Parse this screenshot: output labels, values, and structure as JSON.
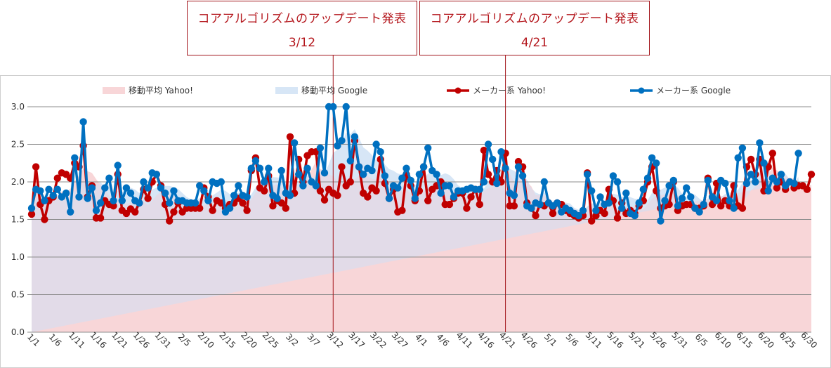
{
  "chart_data": {
    "type": "line",
    "title": "",
    "xlabel": "",
    "ylabel": "",
    "ylim": [
      0,
      3.0
    ],
    "y_ticks": [
      "0.0",
      "0.5",
      "1.0",
      "1.5",
      "2.0",
      "2.5",
      "3.0"
    ],
    "x_tick_labels": [
      "1/1",
      "1/6",
      "1/11",
      "1/16",
      "1/21",
      "1/26",
      "1/31",
      "2/5",
      "2/10",
      "2/15",
      "2/20",
      "2/25",
      "3/2",
      "3/7",
      "3/12",
      "3/17",
      "3/22",
      "3/27",
      "4/1",
      "4/6",
      "4/11",
      "4/16",
      "4/21",
      "4/26",
      "5/1",
      "5/6",
      "5/11",
      "5/16",
      "5/21",
      "5/26",
      "5/31",
      "6/5",
      "6/10",
      "6/15",
      "6/20",
      "6/25",
      "6/30"
    ],
    "legend": [
      "移動平均 Yahoo!",
      "移動平均 Google",
      "メーカー系 Yahoo!",
      "メーカー系 Google"
    ],
    "colors": {
      "yahoo": "#c00000",
      "google": "#0070c0",
      "yahoo_area": "#f8d6d8",
      "google_area": "#d7e6f6",
      "overlap_area": "#e2dbe8",
      "annotation": "#a3161c"
    },
    "annotations": [
      {
        "title": "コアアルゴリズムのアップデート発表",
        "date": "3/12",
        "day_index": 70
      },
      {
        "title": "コアアルゴリズムのアップデート発表",
        "date": "4/21",
        "day_index": 110
      }
    ],
    "series": [
      {
        "name": "メーカー系 Yahoo!",
        "values": [
          1.57,
          2.2,
          1.7,
          1.5,
          1.75,
          1.8,
          2.05,
          2.12,
          2.1,
          2.05,
          2.25,
          2.2,
          2.48,
          1.8,
          1.95,
          1.52,
          1.52,
          1.75,
          1.7,
          1.68,
          2.1,
          1.62,
          1.58,
          1.64,
          1.6,
          1.72,
          1.9,
          1.78,
          2.0,
          2.1,
          1.95,
          1.7,
          1.48,
          1.6,
          1.72,
          1.6,
          1.65,
          1.65,
          1.65,
          1.65,
          1.92,
          1.8,
          1.62,
          1.75,
          1.72,
          1.65,
          1.7,
          1.72,
          1.78,
          1.72,
          1.62,
          2.15,
          2.32,
          1.92,
          1.88,
          2.08,
          1.68,
          1.75,
          1.72,
          1.65,
          2.6,
          1.85,
          2.3,
          2.0,
          2.35,
          2.4,
          2.4,
          1.88,
          1.76,
          1.9,
          1.85,
          1.82,
          2.2,
          1.95,
          2.0,
          2.55,
          2.2,
          1.85,
          1.8,
          1.92,
          1.88,
          2.3,
          1.98,
          1.78,
          1.9,
          1.6,
          1.62,
          2.1,
          1.95,
          1.75,
          1.88,
          2.2,
          1.75,
          1.9,
          1.95,
          2.0,
          1.7,
          1.7,
          1.78,
          1.85,
          1.85,
          1.65,
          1.8,
          1.9,
          1.7,
          2.42,
          2.1,
          2.0,
          2.15,
          2.0,
          2.38,
          1.68,
          1.68,
          2.27,
          2.2,
          1.72,
          1.65,
          1.55,
          1.7,
          1.68,
          1.72,
          1.58,
          1.72,
          1.7,
          1.62,
          1.58,
          1.55,
          1.52,
          1.55,
          2.12,
          1.48,
          1.55,
          1.62,
          1.58,
          1.9,
          1.75,
          1.52,
          1.72,
          1.58,
          1.62,
          1.58,
          1.68,
          1.75,
          2.0,
          2.2,
          1.88,
          1.65,
          1.68,
          1.7,
          2.0,
          1.62,
          1.68,
          1.7,
          1.7,
          1.65,
          1.65,
          1.68,
          2.05,
          1.7,
          1.98,
          1.68,
          1.75,
          1.68,
          1.95,
          1.68,
          1.65,
          2.2,
          2.3,
          2.1,
          2.3,
          1.88,
          2.2,
          2.38,
          1.92,
          2.0,
          1.9,
          2.0,
          1.92,
          1.95,
          1.95,
          1.9,
          2.1
        ]
      },
      {
        "name": "メーカー系 Google",
        "values": [
          1.65,
          1.9,
          1.88,
          1.75,
          1.9,
          1.82,
          1.9,
          1.8,
          1.85,
          1.6,
          2.32,
          1.8,
          2.8,
          1.78,
          1.92,
          1.62,
          1.72,
          1.92,
          2.05,
          1.75,
          2.22,
          1.75,
          1.92,
          1.85,
          1.75,
          1.72,
          2.0,
          1.92,
          2.12,
          2.1,
          1.92,
          1.85,
          1.72,
          1.88,
          1.75,
          1.75,
          1.72,
          1.72,
          1.72,
          1.95,
          1.88,
          1.75,
          2.0,
          1.98,
          2.0,
          1.6,
          1.65,
          1.82,
          1.95,
          1.82,
          1.8,
          2.18,
          2.28,
          2.18,
          2.0,
          2.18,
          1.82,
          1.78,
          2.15,
          1.85,
          1.82,
          2.52,
          2.1,
          1.95,
          2.18,
          2.0,
          1.95,
          2.45,
          2.12,
          3.0,
          3.0,
          2.48,
          2.55,
          3.0,
          2.28,
          2.6,
          2.2,
          2.1,
          2.18,
          2.15,
          2.5,
          2.4,
          2.08,
          1.78,
          1.95,
          1.92,
          2.05,
          2.18,
          2.02,
          1.78,
          2.1,
          2.2,
          2.45,
          2.15,
          2.1,
          1.85,
          1.95,
          1.95,
          1.8,
          1.88,
          1.88,
          1.9,
          1.92,
          1.9,
          1.9,
          2.0,
          2.5,
          2.3,
          1.98,
          2.4,
          2.18,
          1.85,
          1.82,
          2.2,
          2.08,
          1.68,
          1.65,
          1.72,
          1.7,
          2.0,
          1.72,
          1.68,
          1.72,
          1.6,
          1.65,
          1.62,
          1.58,
          1.55,
          1.62,
          2.1,
          1.88,
          1.62,
          1.8,
          1.7,
          1.72,
          2.08,
          2.0,
          1.65,
          1.85,
          1.58,
          1.55,
          1.72,
          1.9,
          2.05,
          2.32,
          2.25,
          1.48,
          1.75,
          1.95,
          2.02,
          1.68,
          1.78,
          1.92,
          1.8,
          1.65,
          1.6,
          1.7,
          2.02,
          1.8,
          1.75,
          2.02,
          1.98,
          1.75,
          1.65,
          2.32,
          2.45,
          1.98,
          2.1,
          2.0,
          2.52,
          2.25,
          1.88,
          2.05,
          2.0,
          2.1,
          1.95,
          2.0,
          1.98,
          2.38
        ]
      }
    ]
  }
}
